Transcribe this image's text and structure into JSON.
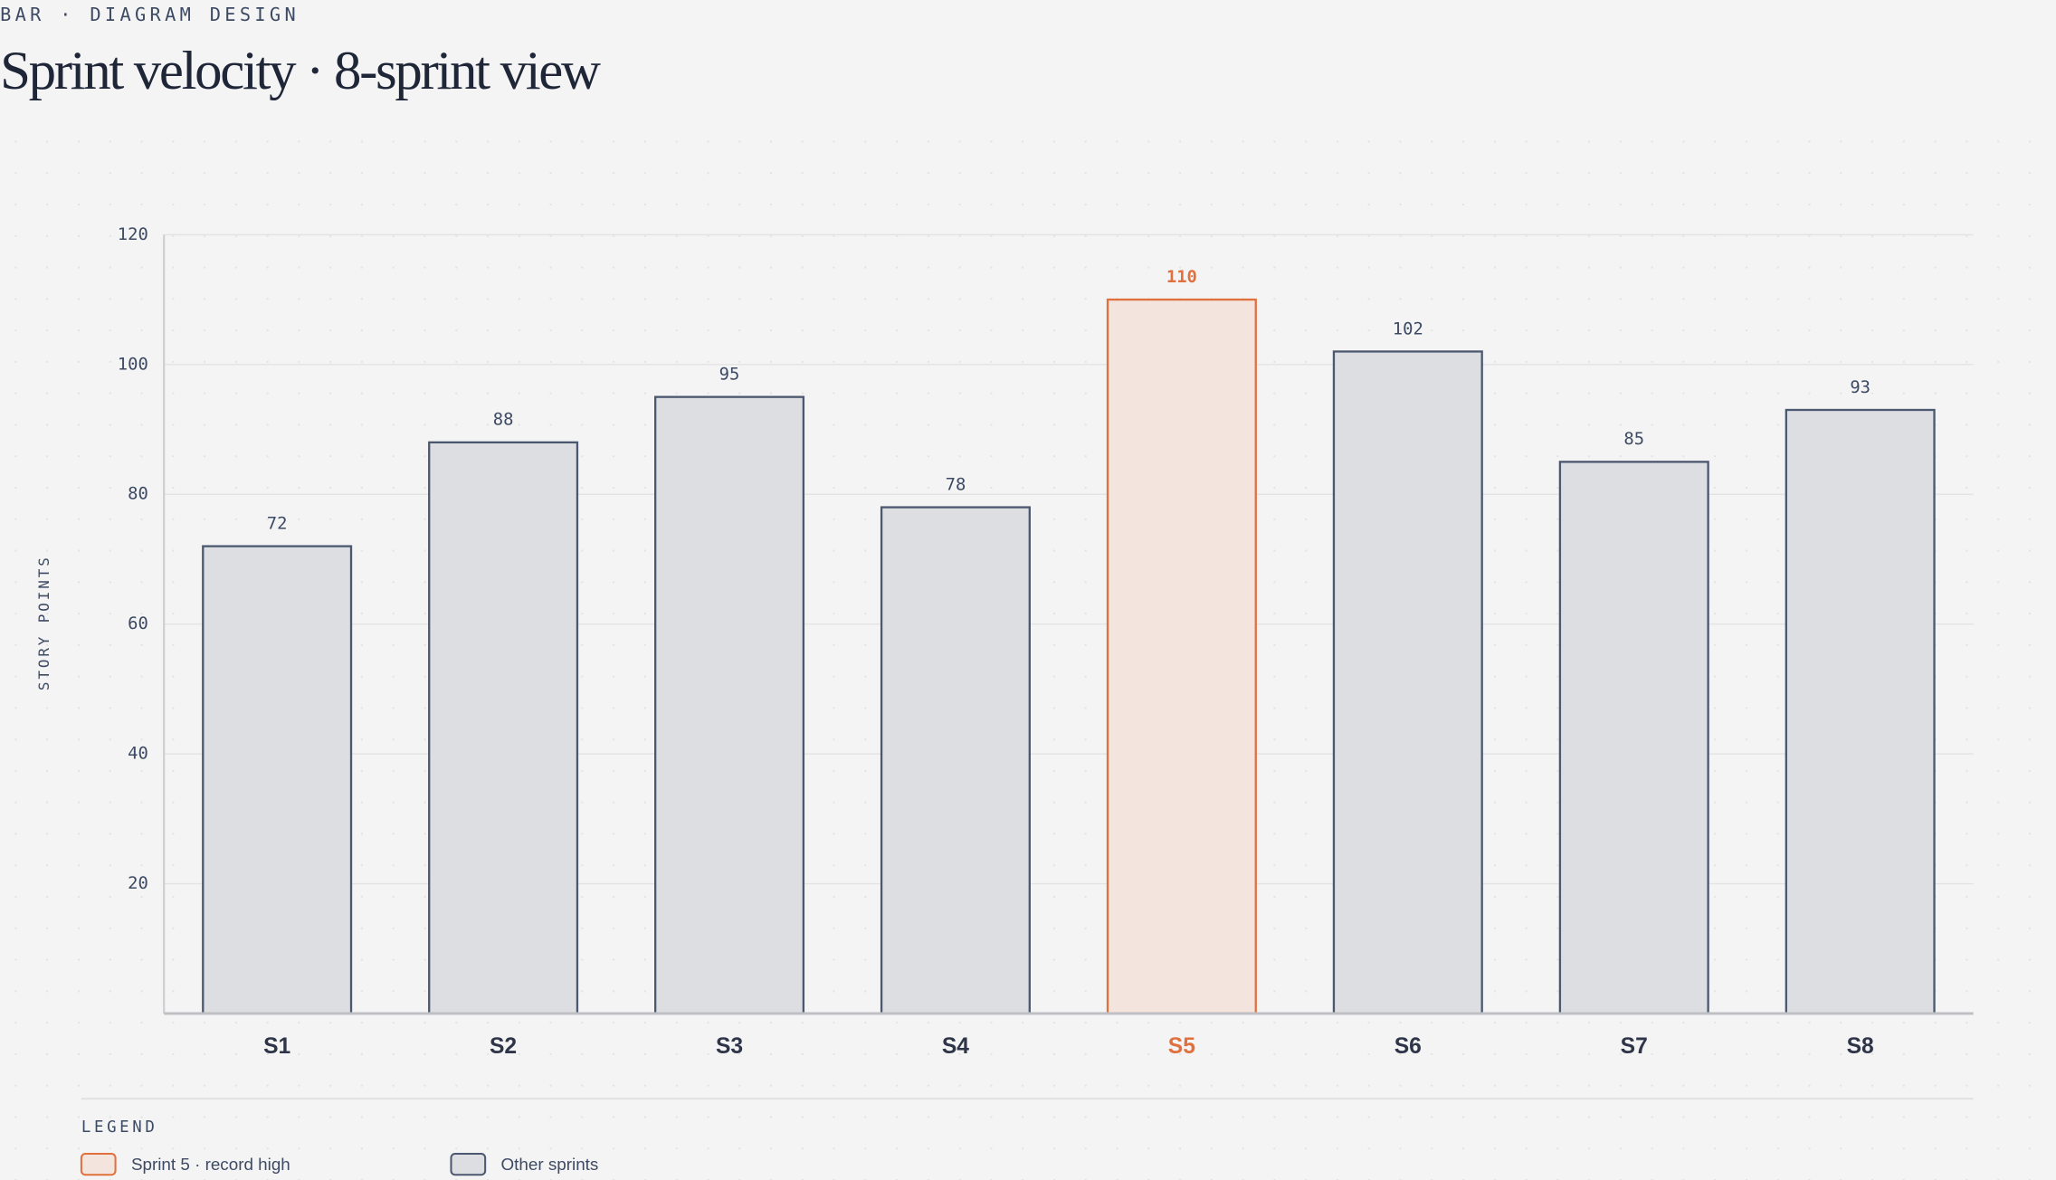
{
  "eyebrow": "BAR · DIAGRAM DESIGN",
  "chart_data": {
    "type": "bar",
    "title": "Sprint velocity · 8-sprint view",
    "y_label": "STORY POINTS",
    "categories": [
      "S1",
      "S2",
      "S3",
      "S4",
      "S5",
      "S6",
      "S7",
      "S8"
    ],
    "values": [
      72,
      88,
      95,
      78,
      110,
      102,
      85,
      93
    ],
    "colors": [
      "#dddee2",
      "#dddee2",
      "#dddee2",
      "#dddee2",
      "#f3e4dd",
      "#dddee2",
      "#dddee2",
      "#dddee2"
    ],
    "stroke_colors": [
      "#4b5870",
      "#4b5870",
      "#4b5870",
      "#4b5870",
      "#e0713f",
      "#4b5870",
      "#4b5870",
      "#4b5870"
    ],
    "ylim": [
      0,
      120
    ],
    "yticks": [
      20,
      40,
      60,
      80,
      100,
      120
    ],
    "grid": true,
    "legend_title": "LEGEND",
    "legend": [
      {
        "label": "Sprint 5 · record high",
        "fill": "#f3e4dd",
        "stroke": "#e0713f"
      },
      {
        "label": "Other sprints",
        "fill": "#dddee2",
        "stroke": "#4b5870"
      }
    ]
  }
}
